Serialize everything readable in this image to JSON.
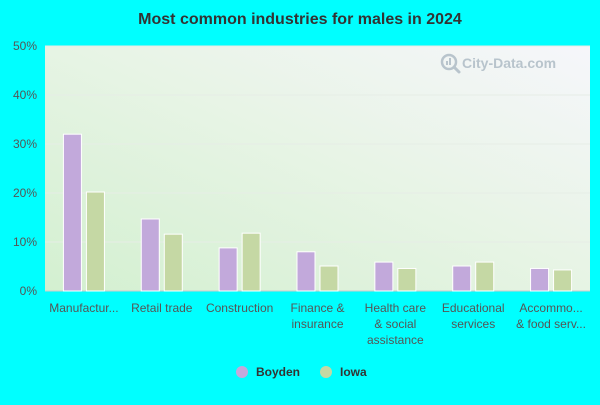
{
  "chart_data": {
    "type": "bar",
    "title": "Most common industries for males in 2024",
    "categories": [
      [
        "Manufactur..."
      ],
      [
        "Retail trade"
      ],
      [
        "Construction"
      ],
      [
        "Finance &",
        "insurance"
      ],
      [
        "Health care",
        "& social",
        "assistance"
      ],
      [
        "Educational",
        "services"
      ],
      [
        "Accommo...",
        "& food serv..."
      ]
    ],
    "series": [
      {
        "name": "Boyden",
        "color": "#C2A9DB",
        "values": [
          32.0,
          14.7,
          8.8,
          8.0,
          5.9,
          5.1,
          4.6
        ]
      },
      {
        "name": "Iowa",
        "color": "#C5D8A4",
        "values": [
          20.2,
          11.6,
          11.8,
          5.1,
          4.6,
          5.9,
          4.3
        ]
      }
    ],
    "y_ticks": [
      "0%",
      "10%",
      "20%",
      "30%",
      "40%",
      "50%"
    ],
    "ylim": [
      0,
      50
    ],
    "grid": true,
    "legend_position": "bottom-center",
    "watermark": {
      "text": "City-Data.com",
      "icon": "magnifier-icon"
    }
  }
}
